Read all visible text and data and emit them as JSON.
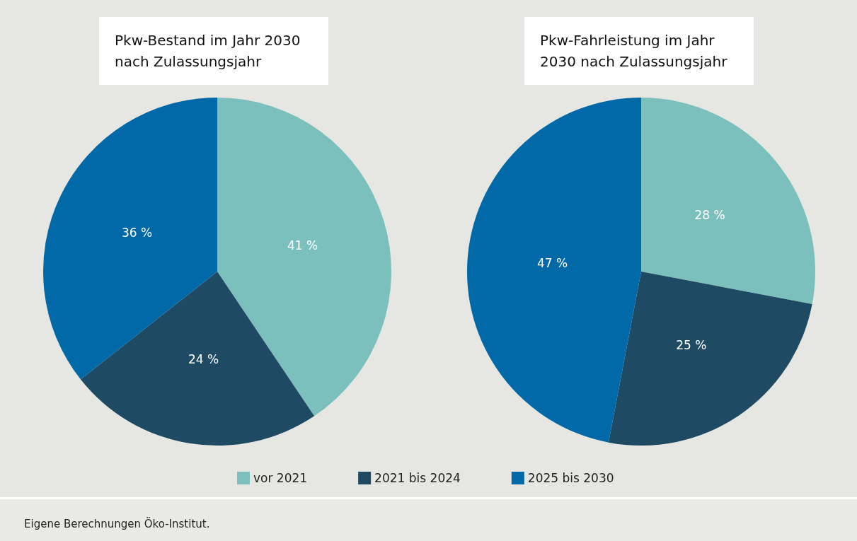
{
  "chart_data": [
    {
      "type": "pie",
      "title": "Pkw-Bestand im Jahr 2030 nach Zulassungsjahr",
      "categories": [
        "vor 2021",
        "2021 bis 2024",
        "2025 bis 2030"
      ],
      "values": [
        41,
        24,
        36
      ],
      "value_labels": [
        "41 %",
        "24 %",
        "36 %"
      ],
      "colors": [
        "#7bc0bc",
        "#1f4a63",
        "#0169a8"
      ],
      "legend": "bottom",
      "annotations": [
        "Eigene Berechnungen Öko-Institut."
      ]
    },
    {
      "type": "pie",
      "title": "Pkw-Fahrleistung im Jahr 2030 nach Zulassungsjahr",
      "values": [
        28,
        25,
        47
      ],
      "value_labels": [
        "28 %",
        "25 %",
        "47 %"
      ],
      "colors": [
        "#7bc0bc",
        "#1f4a63",
        "#0169a8"
      ]
    }
  ]
}
